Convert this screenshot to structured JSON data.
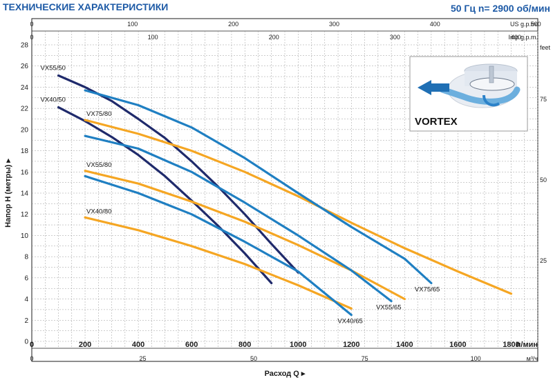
{
  "header": {
    "title": "ТЕХНИЧЕСКИЕ ХАРАКТЕРИСТИКИ",
    "freq": "50 Гц  n= 2900 об/мин"
  },
  "colors": {
    "title": "#1d5aa6",
    "dark_blue": "#1f2a6b",
    "mid_blue": "#1f7fc2",
    "orange": "#f5a623",
    "frame": "#1a1a1a",
    "grid": "#9a9a9a"
  },
  "vortex_label": "VORTEX",
  "chart_data": {
    "type": "line",
    "x_unit": "л/мин",
    "y_unit": "",
    "xlabel": "Расход Q",
    "ylabel": "Напор H (метры)",
    "xlim": [
      0,
      1900
    ],
    "ylim": [
      0,
      28
    ],
    "x_ticks": [
      0,
      200,
      400,
      600,
      800,
      1000,
      1200,
      1400,
      1600,
      1800
    ],
    "y_ticks": [
      0,
      2,
      4,
      6,
      8,
      10,
      12,
      14,
      16,
      18,
      20,
      22,
      24,
      26,
      28
    ],
    "secondary_axes": {
      "top_usgpm": {
        "label": "US g.p.m.",
        "ticks": [
          0,
          100,
          200,
          300,
          400,
          500
        ]
      },
      "top_impgpm": {
        "label": "Imp g.p.m.",
        "ticks": [
          0,
          100,
          200,
          300,
          400
        ]
      },
      "bottom_m3h": {
        "label": "м³/ч",
        "ticks": [
          0,
          25,
          50,
          75,
          100
        ]
      },
      "right_feet": {
        "label": "feet",
        "ticks": [
          25,
          50,
          75
        ]
      }
    },
    "grid": true,
    "series": [
      {
        "name": "VX55/50",
        "color": "#1f2a6b",
        "x": [
          100,
          200,
          300,
          400,
          500,
          600,
          700,
          800,
          900,
          1000
        ],
        "y": [
          25.1,
          24.0,
          22.7,
          21.0,
          19.2,
          17.0,
          14.6,
          12.0,
          9.2,
          6.5
        ]
      },
      {
        "name": "VX40/50",
        "color": "#1f2a6b",
        "x": [
          100,
          200,
          300,
          400,
          500,
          600,
          700,
          800,
          900
        ],
        "y": [
          22.1,
          20.8,
          19.3,
          17.6,
          15.6,
          13.3,
          10.9,
          8.3,
          5.5
        ]
      },
      {
        "name": "VX75/80",
        "color": "#f5a623",
        "x": [
          200,
          400,
          600,
          800,
          1000,
          1200,
          1400,
          1600,
          1800
        ],
        "y": [
          20.9,
          19.6,
          18.0,
          16.0,
          13.7,
          11.2,
          8.8,
          6.6,
          4.5
        ]
      },
      {
        "name": "VX55/80",
        "color": "#f5a623",
        "x": [
          200,
          400,
          600,
          800,
          1000,
          1200,
          1400
        ],
        "y": [
          16.1,
          14.9,
          13.2,
          11.3,
          9.1,
          6.7,
          4.0
        ]
      },
      {
        "name": "VX40/80",
        "color": "#f5a623",
        "x": [
          200,
          400,
          600,
          800,
          1000,
          1200
        ],
        "y": [
          11.7,
          10.5,
          9.0,
          7.3,
          5.3,
          3.1
        ]
      },
      {
        "name": "VX75/65",
        "color": "#1f7fc2",
        "x": [
          200,
          400,
          600,
          800,
          1000,
          1200,
          1400,
          1500
        ],
        "y": [
          23.7,
          22.3,
          20.2,
          17.3,
          14.0,
          10.8,
          7.8,
          5.5
        ]
      },
      {
        "name": "VX55/65",
        "color": "#1f7fc2",
        "x": [
          200,
          400,
          600,
          800,
          1000,
          1200,
          1350
        ],
        "y": [
          19.4,
          18.2,
          16.0,
          13.1,
          10.0,
          6.7,
          3.8
        ]
      },
      {
        "name": "VX40/65",
        "color": "#1f7fc2",
        "x": [
          200,
          400,
          600,
          800,
          1000,
          1200
        ],
        "y": [
          15.6,
          14.0,
          12.0,
          9.4,
          6.6,
          2.5
        ]
      }
    ]
  }
}
